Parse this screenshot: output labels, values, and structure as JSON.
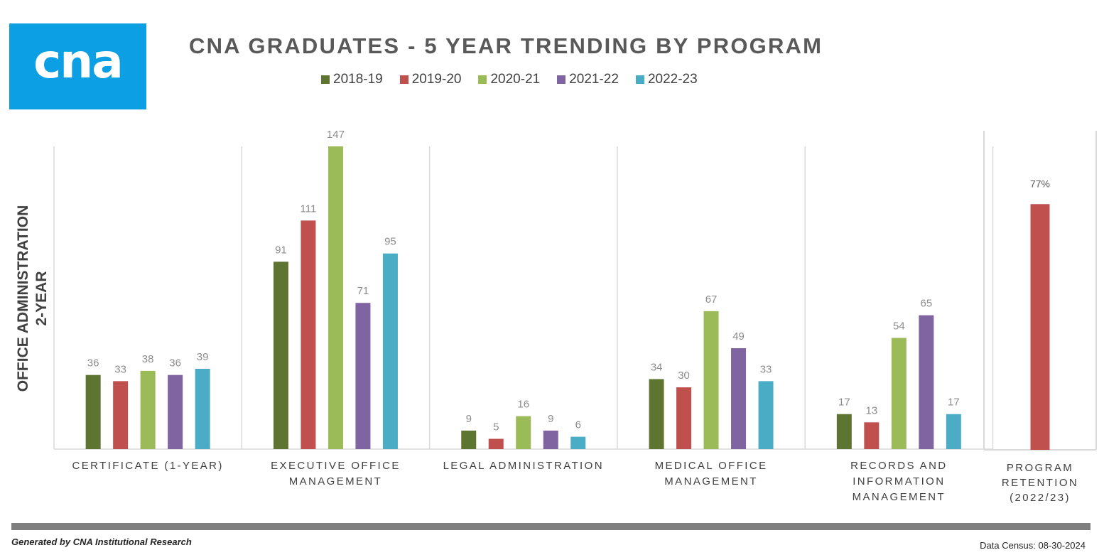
{
  "header": {
    "logo_text": "cna",
    "title": "CNA GRADUATES - 5 YEAR TRENDING BY PROGRAM"
  },
  "colors": {
    "series": [
      "#5e7431",
      "#c0504d",
      "#9bbb59",
      "#8064a2",
      "#4bacc6"
    ],
    "logo_bg": "#0c9fe3",
    "gridline": "#d9d9d9"
  },
  "chart_data": {
    "type": "bar",
    "ylabel_lines": [
      "OFFICE ADMINISTRATION",
      "2-YEAR"
    ],
    "categories": [
      [
        "CERTIFICATE (1-YEAR)"
      ],
      [
        "EXECUTIVE OFFICE",
        "MANAGEMENT"
      ],
      [
        "LEGAL ADMINISTRATION"
      ],
      [
        "MEDICAL OFFICE",
        "MANAGEMENT"
      ],
      [
        "RECORDS AND",
        "INFORMATION",
        "MANAGEMENT"
      ]
    ],
    "series": [
      {
        "name": "2018-19",
        "values": [
          36,
          91,
          9,
          34,
          17
        ]
      },
      {
        "name": "2019-20",
        "values": [
          33,
          111,
          5,
          30,
          13
        ]
      },
      {
        "name": "2020-21",
        "values": [
          38,
          147,
          16,
          67,
          54
        ]
      },
      {
        "name": "2021-22",
        "values": [
          36,
          71,
          9,
          49,
          65
        ]
      },
      {
        "name": "2022-23",
        "values": [
          39,
          95,
          6,
          33,
          17
        ]
      }
    ],
    "ylim": [
      0,
      147
    ],
    "grid": false,
    "legend": "top"
  },
  "retention_chart": {
    "type": "bar",
    "category_lines": [
      "PROGRAM",
      "RETENTION",
      "(2022/23)"
    ],
    "value": 77,
    "value_label": "77%",
    "ylim": [
      0,
      100
    ]
  },
  "footer": {
    "left": "Generated by CNA Institutional Research",
    "right": "Data Census: 08-30-2024"
  }
}
